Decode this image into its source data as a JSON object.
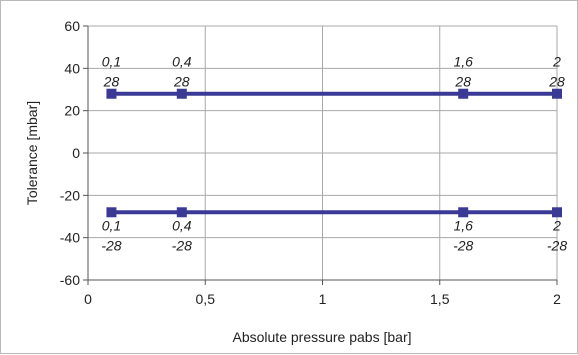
{
  "chart_data": {
    "type": "line",
    "title": "",
    "xlabel": "Absolute pressure pabs [bar]",
    "ylabel": "Tolerance [mbar]",
    "xlim": [
      0,
      2
    ],
    "ylim": [
      -60,
      60
    ],
    "x_ticks": [
      0,
      0.5,
      1,
      1.5,
      2
    ],
    "x_tick_labels": [
      "0",
      "0,5",
      "1",
      "1,5",
      "2"
    ],
    "y_ticks": [
      -60,
      -40,
      -20,
      0,
      20,
      40,
      60
    ],
    "y_tick_labels": [
      "-60",
      "-40",
      "-20",
      "0",
      "20",
      "40",
      "60"
    ],
    "grid": true,
    "legend": "none",
    "series": [
      {
        "x": [
          0.1,
          0.4,
          1.6,
          2
        ],
        "y": [
          28,
          28,
          28,
          28
        ],
        "point_labels": [
          [
            "0,1",
            "28"
          ],
          [
            "0,4",
            "28"
          ],
          [
            "1,6",
            "28"
          ],
          [
            "2",
            "28"
          ]
        ]
      },
      {
        "x": [
          0.1,
          0.4,
          1.6,
          2
        ],
        "y": [
          -28,
          -28,
          -28,
          -28
        ],
        "point_labels": [
          [
            "0,1",
            "-28"
          ],
          [
            "0,4",
            "-28"
          ],
          [
            "1,6",
            "-28"
          ],
          [
            "2",
            "-28"
          ]
        ]
      }
    ],
    "colors": {
      "series": "#3a3a96",
      "grid": "#a8a8a8",
      "axis": "#555555"
    }
  }
}
